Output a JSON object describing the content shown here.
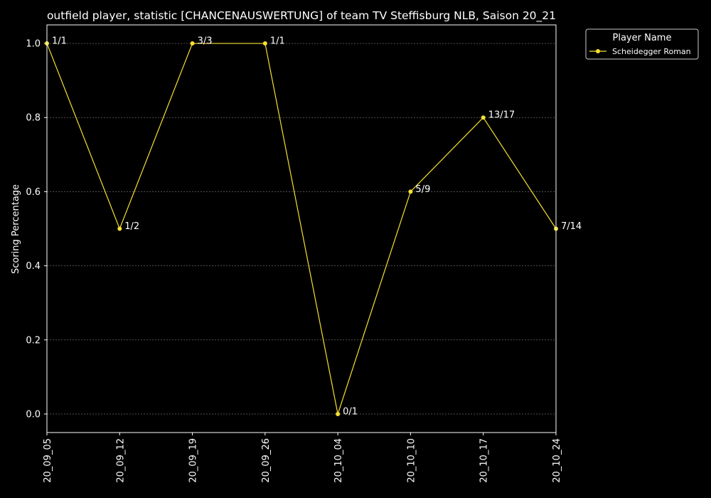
{
  "colors": {
    "background": "#000000",
    "foreground": "#ffffff",
    "series": "#f5e132",
    "grid": "#808080"
  },
  "chart_data": {
    "type": "line",
    "title": "outfield player, statistic [CHANCENAUSWERTUNG] of team TV Steffisburg NLB, Saison 20_21",
    "xlabel": "",
    "ylabel": "Scoring Percentage",
    "x": [
      "20_09_05",
      "20_09_12",
      "20_09_19",
      "20_09_26",
      "20_10_04",
      "20_10_10",
      "20_10_17",
      "20_10_24"
    ],
    "ylim": [
      -0.05,
      1.05
    ],
    "yticks": [
      "0.0",
      "0.2",
      "0.4",
      "0.6",
      "0.8",
      "1.0"
    ],
    "grid": true,
    "legend": {
      "title": "Player Name",
      "placement": "upper-right-outside"
    },
    "series": [
      {
        "name": "Scheidegger Roman",
        "values": [
          1.0,
          0.5,
          1.0,
          1.0,
          0.0,
          0.6,
          0.8,
          0.5
        ],
        "labels": [
          "1/1",
          "1/2",
          "3/3",
          "1/1",
          "0/1",
          "5/9",
          "13/17",
          "7/14"
        ]
      }
    ]
  }
}
